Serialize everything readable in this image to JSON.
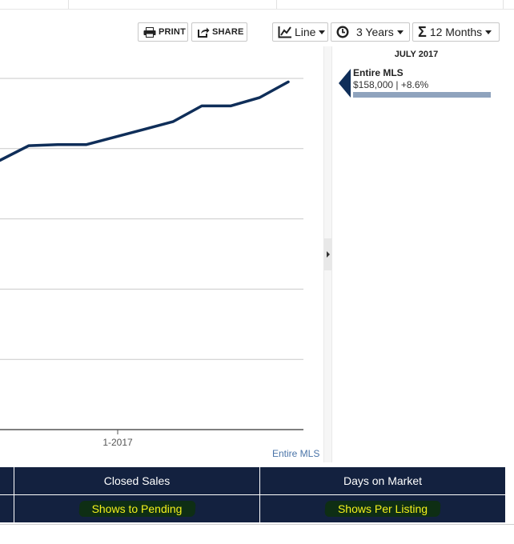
{
  "toolbar": {
    "print_label": "PRINT",
    "share_label": "SHARE",
    "chart_type_label": "Line",
    "time_range_label": "3 Years",
    "rolling_label": "12 Months",
    "icons": {
      "print": "printer-icon",
      "share": "share-icon",
      "chart_type": "line-chart-icon",
      "time_range": "clock-icon",
      "rolling": "sigma-icon"
    }
  },
  "legend": {
    "date": "JULY 2017",
    "series_name": "Entire MLS",
    "value_text": "$158,000 | +8.6%",
    "bar_fill_fraction": 1.0,
    "pointer_color": "#0f2e59",
    "bar_color": "#8fa3bd"
  },
  "chart_data": {
    "type": "line",
    "x_tick_label": "1-2017",
    "series": [
      {
        "name": "Entire MLS",
        "color": "#0f2e59",
        "values": [
          126000,
          128500,
          128700,
          128700,
          130000,
          131300,
          132600,
          135300,
          135300,
          136700,
          139400
        ]
      }
    ],
    "ylim": [
      80000,
      140000
    ],
    "grid": true,
    "series_label": "Entire MLS"
  },
  "metrics": {
    "row1": [
      "Closed Sales",
      "Days on Market"
    ],
    "row2": [
      "Shows to Pending",
      "Shows Per Listing"
    ]
  }
}
